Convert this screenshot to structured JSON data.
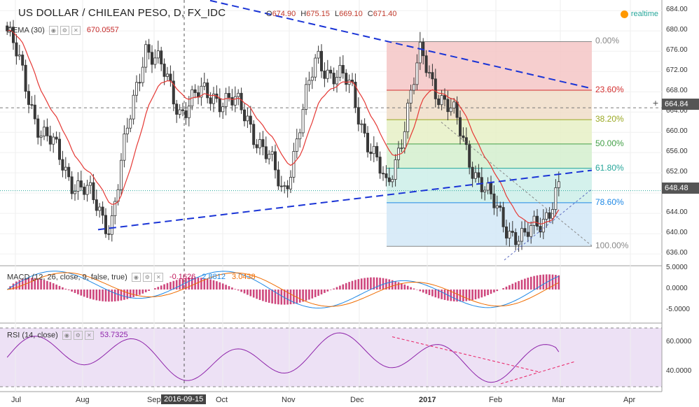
{
  "header": {
    "title": "US DOLLAR / CHILEAN PESO, D, FX_IDC",
    "ohlc": [
      {
        "k": "O",
        "v": "674.90"
      },
      {
        "k": "H",
        "v": "675.15"
      },
      {
        "k": "L",
        "v": "669.10"
      },
      {
        "k": "C",
        "v": "671.40"
      }
    ],
    "realtime": "realtime"
  },
  "indicators": {
    "dema": {
      "label": "DEMA (30)",
      "value": "670.0557"
    },
    "macd": {
      "label": "MACD (12, 26, close, 9, false, true)",
      "values": [
        "-0.1626",
        "2.8812",
        "3.0438"
      ]
    },
    "rsi": {
      "label": "RSI (14, close)",
      "value": "53.7325"
    }
  },
  "price_axis": [
    "684.00",
    "680.00",
    "676.00",
    "672.00",
    "668.00",
    "664.00",
    "660.00",
    "656.00",
    "652.00",
    "648.00",
    "644.00",
    "640.00",
    "636.00"
  ],
  "macd_axis": [
    "5.0000",
    "0.0000",
    "-5.0000"
  ],
  "rsi_axis": [
    "60.0000",
    "40.0000"
  ],
  "crosshair_price": "664.84",
  "last_price": "648.48",
  "time_axis": [
    "Jul",
    "Aug",
    "Sep",
    "Oct",
    "Nov",
    "Dec",
    "2017",
    "Feb",
    "Mar",
    "Apr"
  ],
  "crosshair_date": "2016-09-15",
  "fib": [
    {
      "level": 0,
      "label": "0.00%",
      "price": 677.9,
      "color": "#888888"
    },
    {
      "level": 0.236,
      "label": "23.60%",
      "price": 668.3,
      "color": "#d32f2f"
    },
    {
      "level": 0.382,
      "label": "38.20%",
      "price": 662.5,
      "color": "#9aa822"
    },
    {
      "level": 0.5,
      "label": "50.00%",
      "price": 657.7,
      "color": "#43a047"
    },
    {
      "level": 0.618,
      "label": "61.80%",
      "price": 652.9,
      "color": "#26a69a"
    },
    {
      "level": 0.786,
      "label": "78.60%",
      "price": 646.1,
      "color": "#1e88e5"
    },
    {
      "level": 1,
      "label": "100.00%",
      "price": 637.5,
      "color": "#888888"
    }
  ],
  "chart_data": {
    "type": "line",
    "title": "US DOLLAR / CHILEAN PESO, D, FX_IDC",
    "ylim": [
      634.5,
      685
    ],
    "series": [
      {
        "name": "DEMA (30)",
        "x": [
          "Jul",
          "Aug",
          "Sep",
          "Oct",
          "Nov",
          "Dec",
          "2017",
          "Feb",
          "Mar"
        ],
        "values": [
          671,
          650,
          668,
          660,
          650,
          660,
          672,
          645,
          641
        ]
      }
    ],
    "close_approx": [
      {
        "x": "Jul",
        "y": 680
      },
      {
        "x": "Jul-mid",
        "y": 660
      },
      {
        "x": "Aug",
        "y": 650
      },
      {
        "x": "Aug-mid",
        "y": 642
      },
      {
        "x": "Sep",
        "y": 678
      },
      {
        "x": "Sep-mid",
        "y": 665
      },
      {
        "x": "Oct",
        "y": 668
      },
      {
        "x": "Oct-mid",
        "y": 663
      },
      {
        "x": "Nov",
        "y": 648
      },
      {
        "x": "Nov-mid",
        "y": 675
      },
      {
        "x": "Dec",
        "y": 668
      },
      {
        "x": "Dec-mid",
        "y": 648
      },
      {
        "x": "2017",
        "y": 675
      },
      {
        "x": "2017-mid",
        "y": 662
      },
      {
        "x": "Feb",
        "y": 646
      },
      {
        "x": "Feb-mid",
        "y": 638
      },
      {
        "x": "Mar",
        "y": 648.48
      }
    ],
    "macd": {
      "ylim": [
        -7,
        6
      ],
      "values": [
        "-0.1626",
        "2.8812",
        "3.0438"
      ]
    },
    "rsi": {
      "ylim": [
        25,
        72
      ],
      "value": 53.7325
    }
  }
}
